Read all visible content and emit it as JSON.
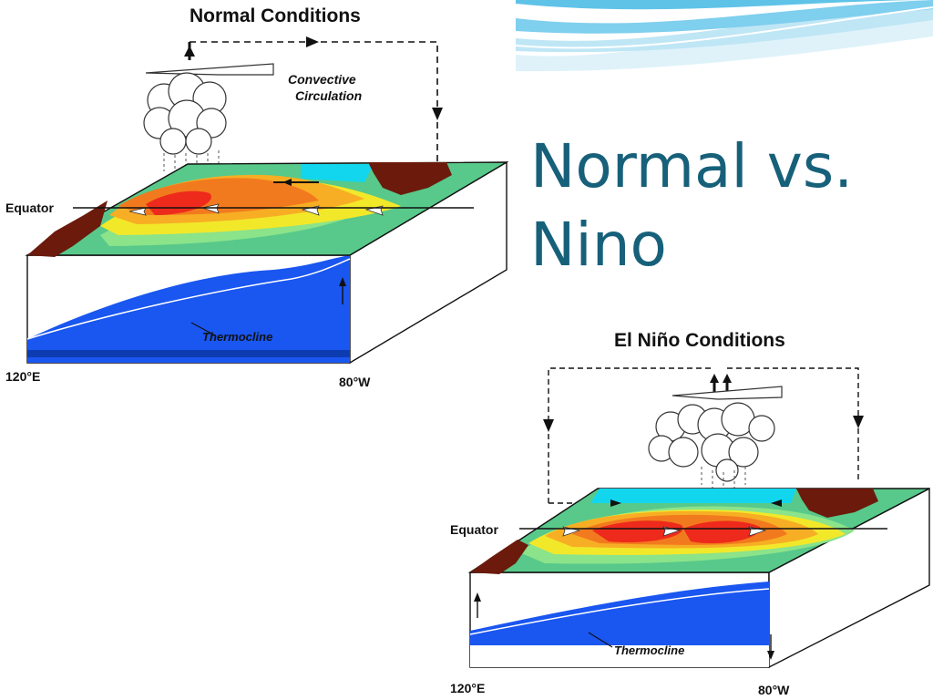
{
  "slide": {
    "title": "Normal vs.\nNino"
  },
  "normal_diagram": {
    "heading": "Normal Conditions",
    "circulation_label_line1": "Convective",
    "circulation_label_line2": "Circulation",
    "equator_label": "Equator",
    "thermocline_label": "Thermocline",
    "left_longitude": "120°E",
    "right_longitude": "80°W"
  },
  "nino_diagram": {
    "heading": "El Niño Conditions",
    "equator_label": "Equator",
    "thermocline_label": "Thermocline",
    "left_longitude": "120°E",
    "right_longitude": "80°W"
  },
  "colors": {
    "title": "#17607a",
    "warm_pool": "#ee2a1c",
    "ocean_deep": "#1a56f0",
    "land": "#6b1a0c",
    "banner_light": "#bfe6f5",
    "banner_mid": "#5fc3e8"
  }
}
